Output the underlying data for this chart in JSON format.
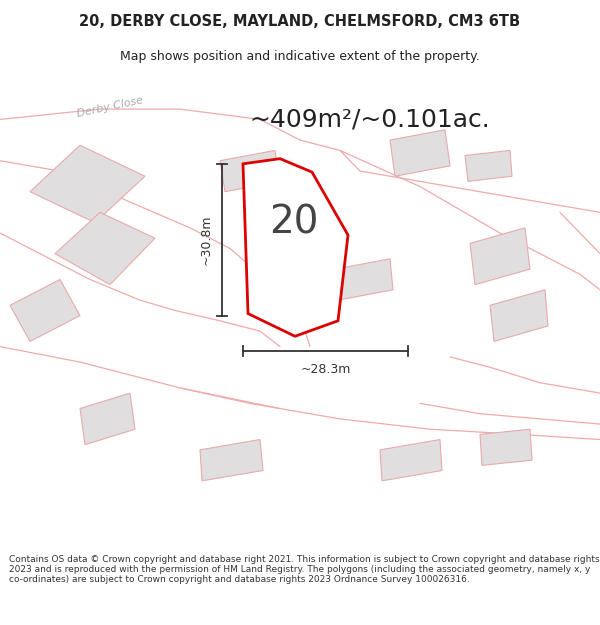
{
  "title_line1": "20, DERBY CLOSE, MAYLAND, CHELMSFORD, CM3 6TB",
  "title_line2": "Map shows position and indicative extent of the property.",
  "area_label": "~409m²/~0.101ac.",
  "plot_number": "20",
  "dim_vertical": "~30.8m",
  "dim_horizontal": "~28.3m",
  "footer_text": "Contains OS data © Crown copyright and database right 2021. This information is subject to Crown copyright and database rights 2023 and is reproduced with the permission of HM Land Registry. The polygons (including the associated geometry, namely x, y co-ordinates) are subject to Crown copyright and database rights 2023 Ordnance Survey 100026316.",
  "bg_color": "#ffffff",
  "map_bg": "#fafafa",
  "plot_fill": "#ffffff",
  "plot_edge": "#dd0000",
  "bldg_fill": "#e0dede",
  "bldg_edge": "#e8aaaa",
  "plot_line_color": "#f0aaaa",
  "dim_color": "#333333",
  "title_color": "#222222",
  "footer_color": "#333333",
  "road_label_color": "#aaaaaa",
  "title_fontsize": 10.5,
  "subtitle_fontsize": 9,
  "area_fontsize": 18,
  "plot_num_fontsize": 28,
  "dim_fontsize": 9,
  "footer_fontsize": 6.5
}
